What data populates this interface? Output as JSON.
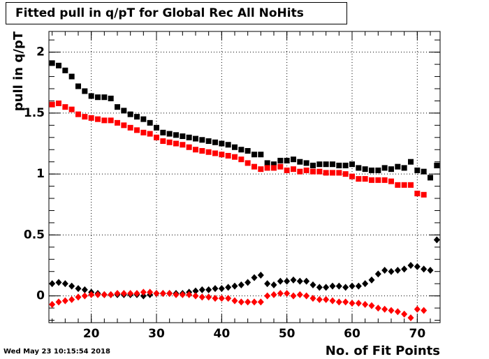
{
  "chart_data": {
    "type": "scatter",
    "title": "Fitted pull in q/pT for Global Rec All NoHits",
    "x_label": "No. of Fit Points",
    "y_label": "pull in q/pT",
    "timestamp": "Wed May 23 10:15:54 2018",
    "xlim": [
      13.5,
      73.5
    ],
    "ylim": [
      -0.22,
      2.17
    ],
    "xticks": [
      20,
      30,
      40,
      50,
      60,
      70
    ],
    "yticks": [
      0,
      0.5,
      1,
      1.5,
      2
    ],
    "grid": true,
    "series": [
      {
        "color": "#000000",
        "marker": "square",
        "x": [
          14,
          15,
          16,
          17,
          18,
          19,
          20,
          21,
          22,
          23,
          24,
          25,
          26,
          27,
          28,
          29,
          30,
          31,
          32,
          33,
          34,
          35,
          36,
          37,
          38,
          39,
          40,
          41,
          42,
          43,
          44,
          45,
          46,
          47,
          48,
          49,
          50,
          51,
          52,
          53,
          54,
          55,
          56,
          57,
          58,
          59,
          60,
          61,
          62,
          63,
          64,
          65,
          66,
          67,
          68,
          69,
          70,
          71,
          72,
          73
        ],
        "values": [
          1.91,
          1.89,
          1.85,
          1.8,
          1.72,
          1.68,
          1.64,
          1.63,
          1.63,
          1.62,
          1.55,
          1.52,
          1.49,
          1.47,
          1.45,
          1.42,
          1.38,
          1.34,
          1.33,
          1.32,
          1.31,
          1.3,
          1.29,
          1.28,
          1.27,
          1.26,
          1.25,
          1.24,
          1.22,
          1.2,
          1.19,
          1.16,
          1.16,
          1.09,
          1.08,
          1.11,
          1.11,
          1.12,
          1.1,
          1.09,
          1.07,
          1.08,
          1.08,
          1.08,
          1.07,
          1.07,
          1.08,
          1.05,
          1.04,
          1.03,
          1.03,
          1.05,
          1.04,
          1.06,
          1.05,
          1.1,
          1.03,
          1.02,
          0.97,
          1.07
        ]
      },
      {
        "color": "#ff0000",
        "marker": "square",
        "x": [
          14,
          15,
          16,
          17,
          18,
          19,
          20,
          21,
          22,
          23,
          24,
          25,
          26,
          27,
          28,
          29,
          30,
          31,
          32,
          33,
          34,
          35,
          36,
          37,
          38,
          39,
          40,
          41,
          42,
          43,
          44,
          45,
          46,
          47,
          48,
          49,
          50,
          51,
          52,
          53,
          54,
          55,
          56,
          57,
          58,
          59,
          60,
          61,
          62,
          63,
          64,
          65,
          66,
          67,
          68,
          69,
          70,
          71
        ],
        "values": [
          1.57,
          1.58,
          1.55,
          1.53,
          1.49,
          1.47,
          1.46,
          1.45,
          1.44,
          1.44,
          1.42,
          1.4,
          1.38,
          1.36,
          1.34,
          1.33,
          1.3,
          1.27,
          1.26,
          1.25,
          1.24,
          1.22,
          1.2,
          1.19,
          1.18,
          1.17,
          1.16,
          1.15,
          1.14,
          1.12,
          1.09,
          1.06,
          1.04,
          1.05,
          1.05,
          1.06,
          1.03,
          1.04,
          1.02,
          1.03,
          1.02,
          1.02,
          1.01,
          1.01,
          1.01,
          1.0,
          0.98,
          0.96,
          0.96,
          0.95,
          0.95,
          0.95,
          0.94,
          0.91,
          0.91,
          0.91,
          0.84,
          0.83
        ]
      },
      {
        "color": "#000000",
        "marker": "diamond",
        "x": [
          14,
          15,
          16,
          17,
          18,
          19,
          20,
          21,
          22,
          23,
          24,
          25,
          26,
          27,
          28,
          29,
          30,
          31,
          32,
          33,
          34,
          35,
          36,
          37,
          38,
          39,
          40,
          41,
          42,
          43,
          44,
          45,
          46,
          47,
          48,
          49,
          50,
          51,
          52,
          53,
          54,
          55,
          56,
          57,
          58,
          59,
          60,
          61,
          62,
          63,
          64,
          65,
          66,
          67,
          68,
          69,
          70,
          71,
          72,
          73
        ],
        "values": [
          0.1,
          0.11,
          0.1,
          0.08,
          0.06,
          0.05,
          0.03,
          0.02,
          0.01,
          0.01,
          0.01,
          0.01,
          0.01,
          0.01,
          0.0,
          0.01,
          0.02,
          0.02,
          0.02,
          0.02,
          0.02,
          0.03,
          0.04,
          0.05,
          0.05,
          0.06,
          0.06,
          0.07,
          0.08,
          0.09,
          0.11,
          0.15,
          0.17,
          0.1,
          0.09,
          0.12,
          0.12,
          0.13,
          0.12,
          0.12,
          0.09,
          0.07,
          0.07,
          0.08,
          0.08,
          0.07,
          0.08,
          0.08,
          0.1,
          0.13,
          0.18,
          0.21,
          0.2,
          0.21,
          0.22,
          0.25,
          0.24,
          0.22,
          0.21,
          0.46
        ]
      },
      {
        "color": "#ff0000",
        "marker": "diamond",
        "x": [
          14,
          15,
          16,
          17,
          18,
          19,
          20,
          21,
          22,
          23,
          24,
          25,
          26,
          27,
          28,
          29,
          30,
          31,
          32,
          33,
          34,
          35,
          36,
          37,
          38,
          39,
          40,
          41,
          42,
          43,
          44,
          45,
          46,
          47,
          48,
          49,
          50,
          51,
          52,
          53,
          54,
          55,
          56,
          57,
          58,
          59,
          60,
          61,
          62,
          63,
          64,
          65,
          66,
          67,
          68,
          69,
          70,
          71
        ],
        "values": [
          -0.07,
          -0.05,
          -0.04,
          -0.03,
          -0.01,
          0.0,
          0.01,
          0.01,
          0.01,
          0.01,
          0.02,
          0.02,
          0.02,
          0.02,
          0.03,
          0.03,
          0.02,
          0.02,
          0.02,
          0.01,
          0.01,
          0.01,
          0.0,
          -0.01,
          -0.01,
          -0.02,
          -0.02,
          -0.02,
          -0.04,
          -0.05,
          -0.05,
          -0.05,
          -0.05,
          0.0,
          0.01,
          0.02,
          0.02,
          0.0,
          0.01,
          0.0,
          -0.02,
          -0.03,
          -0.03,
          -0.04,
          -0.05,
          -0.05,
          -0.06,
          -0.06,
          -0.07,
          -0.08,
          -0.1,
          -0.11,
          -0.12,
          -0.13,
          -0.15,
          -0.18,
          -0.11,
          -0.12
        ]
      }
    ]
  }
}
